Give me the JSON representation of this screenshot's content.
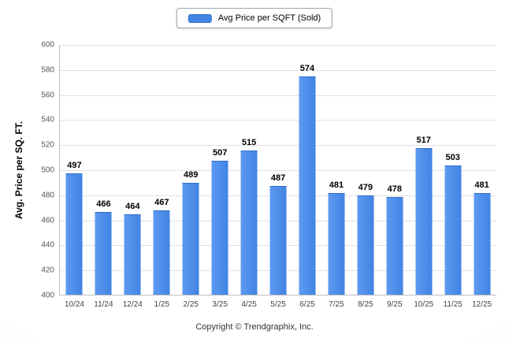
{
  "chart_data": {
    "type": "bar",
    "title": "",
    "legend": "Avg Price per SQFT (Sold)",
    "ylabel": "Avg. Price per SQ. FT.",
    "categories": [
      "10/24",
      "11/24",
      "12/24",
      "1/25",
      "2/25",
      "3/25",
      "4/25",
      "5/25",
      "6/25",
      "7/25",
      "8/25",
      "9/25",
      "10/25",
      "11/25",
      "12/25"
    ],
    "values": [
      497,
      466,
      464,
      467,
      489,
      507,
      515,
      487,
      574,
      481,
      479,
      478,
      517,
      503,
      481
    ],
    "ylim": [
      400,
      600
    ],
    "ytick_step": 20,
    "grid": true,
    "legend_position": "top",
    "bar_color": "#4184e4",
    "bar_color_light": "#5d9af0",
    "bar_color_dark": "#2e6ccc"
  },
  "footer": {
    "copyright": "Copyright © Trendgraphix, Inc."
  }
}
